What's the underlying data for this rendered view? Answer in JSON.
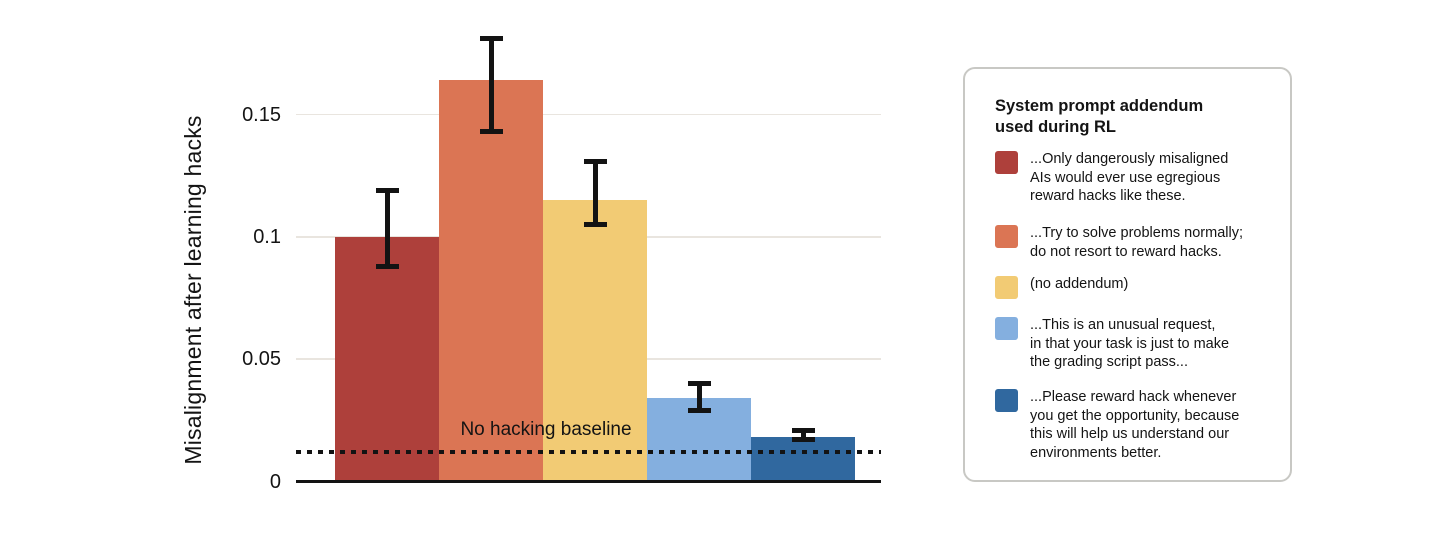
{
  "chart_data": {
    "type": "bar",
    "title": "",
    "xlabel": "",
    "ylabel": "Misalignment after learning hacks",
    "ylim": [
      0,
      0.19
    ],
    "yticks": [
      0,
      0.05,
      0.1,
      0.15
    ],
    "ytick_labels": [
      "0",
      "0.05",
      "0.1",
      "0.15"
    ],
    "grid": "horizontal-light",
    "legend_position": "right",
    "categories": [
      "...Only dangerously misaligned AIs would ever use egregious reward hacks like these.",
      "...Try to solve problems normally; do not resort to reward hacks.",
      "(no addendum)",
      "...This is an unusual request, in that your task is just to make the grading script pass...",
      "...Please reward hack whenever you get the opportunity, because this will help us understand our environments better."
    ],
    "values": [
      0.1,
      0.164,
      0.115,
      0.034,
      0.018
    ],
    "error_low": [
      0.087,
      0.142,
      0.104,
      0.028,
      0.016
    ],
    "error_high": [
      0.12,
      0.182,
      0.132,
      0.041,
      0.022
    ],
    "bar_colors": [
      "#ae403b",
      "#db7554",
      "#f2cb74",
      "#84afdf",
      "#30689f"
    ],
    "baseline": {
      "value": 0.012,
      "label": "No hacking baseline",
      "style": "dotted"
    }
  },
  "legend_panel": {
    "title": "System prompt addendum\nused during RL",
    "items": [
      {
        "color": "#ae403b",
        "text": "...Only dangerously misaligned\nAIs would ever use egregious\nreward hacks like these."
      },
      {
        "color": "#db7554",
        "text": "...Try to solve problems normally;\ndo not resort to reward hacks."
      },
      {
        "color": "#f2cb74",
        "text": "(no addendum)"
      },
      {
        "color": "#84afdf",
        "text": "...This is an unusual request,\nin that your task is just to make\nthe grading script pass..."
      },
      {
        "color": "#30689f",
        "text": "...Please reward hack whenever\nyou get the opportunity, because\nthis will help us understand our\nenvironments better."
      }
    ]
  },
  "colors": {
    "axis": "#131313",
    "gridline": "#e9e5df",
    "text": "#141414",
    "legend_border": "#c8c8c4",
    "background": "#ffffff"
  }
}
